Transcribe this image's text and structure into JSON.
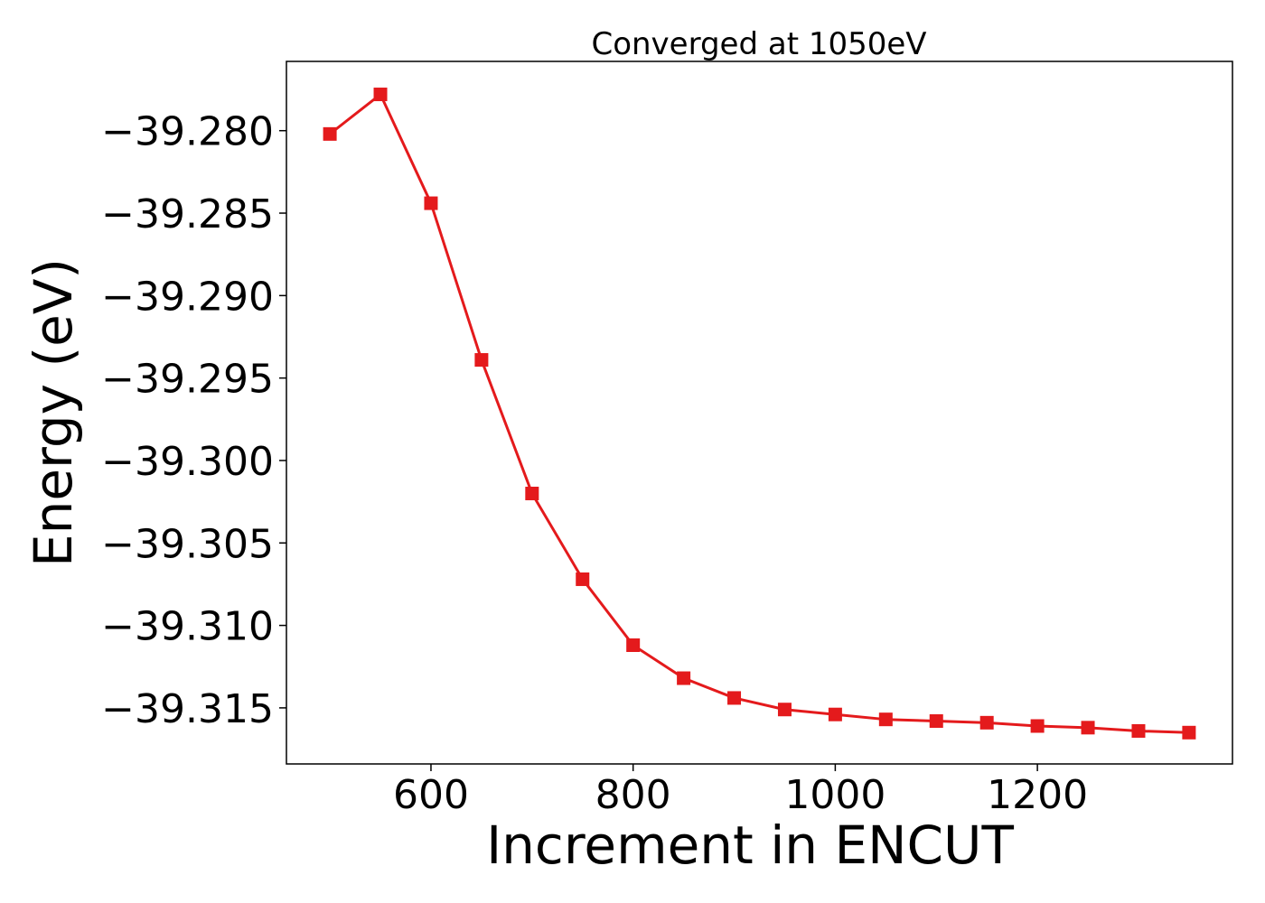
{
  "chart_data": {
    "type": "line",
    "title": "Converged at 1050eV",
    "xlabel": "Increment in ENCUT",
    "ylabel": "Energy (eV)",
    "x": [
      500,
      550,
      600,
      650,
      700,
      750,
      800,
      850,
      900,
      950,
      1000,
      1050,
      1100,
      1150,
      1200,
      1250,
      1300,
      1350
    ],
    "series": [
      {
        "values": [
          -39.2802,
          -39.2778,
          -39.2844,
          -39.2939,
          -39.302,
          -39.3072,
          -39.3112,
          -39.3132,
          -39.3144,
          -39.3151,
          -39.3154,
          -39.3157,
          -39.3158,
          -39.3159,
          -39.3161,
          -39.3162,
          -39.3164,
          -39.3165
        ],
        "color": "#e41a1c",
        "marker": "square"
      }
    ],
    "xlim": [
      457,
      1393
    ],
    "ylim": [
      -39.3184,
      -39.2758
    ],
    "xticks": [
      600,
      800,
      1000,
      1200
    ],
    "xtick_labels": [
      "600",
      "800",
      "1000",
      "1200"
    ],
    "yticks": [
      -39.28,
      -39.285,
      -39.29,
      -39.295,
      -39.3,
      -39.305,
      -39.31,
      -39.315
    ],
    "ytick_labels": [
      "−39.280",
      "−39.285",
      "−39.290",
      "−39.295",
      "−39.300",
      "−39.305",
      "−39.310",
      "−39.315"
    ],
    "grid": false,
    "legend": false
  }
}
